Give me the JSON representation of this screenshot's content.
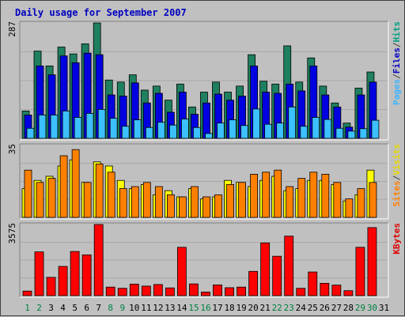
{
  "title": "Daily usage for September 2007",
  "legend": {
    "top": [
      {
        "label": "Pages",
        "color": "#3cb4ff"
      },
      {
        "label": "/",
        "color": "#404040"
      },
      {
        "label": "Files",
        "color": "#0000c0"
      },
      {
        "label": "/",
        "color": "#404040"
      },
      {
        "label": "Hits",
        "color": "#00a080"
      }
    ],
    "middle": [
      {
        "label": "Sites",
        "color": "#ff7f00"
      },
      {
        "label": "/",
        "color": "#404040"
      },
      {
        "label": "Visits",
        "color": "#e8d800"
      }
    ],
    "bottom": [
      {
        "label": "KBytes",
        "color": "#e00000"
      }
    ]
  },
  "colors": {
    "hits": "#1e8060",
    "files": "#0000e0",
    "pages": "#3cc0ff",
    "visits": "#ffff00",
    "sites": "#ff8000",
    "kbytes": "#ff0000",
    "weekday_label": "#000000",
    "weekend_label": "#008040"
  },
  "chart_data": [
    {
      "type": "bar",
      "panel": "top",
      "max_label": "287",
      "ylim": [
        0,
        287
      ],
      "categories": [
        "1",
        "2",
        "3",
        "4",
        "5",
        "6",
        "7",
        "8",
        "9",
        "10",
        "11",
        "12",
        "13",
        "14",
        "15",
        "16",
        "17",
        "18",
        "19",
        "20",
        "21",
        "22",
        "23",
        "24",
        "25",
        "26",
        "27",
        "28",
        "29",
        "30",
        "31"
      ],
      "series": [
        {
          "name": "Hits",
          "values": [
            68,
            217,
            180,
            227,
            210,
            235,
            287,
            145,
            140,
            158,
            120,
            130,
            95,
            135,
            78,
            115,
            140,
            115,
            130,
            208,
            142,
            135,
            230,
            140,
            200,
            130,
            88,
            38,
            125,
            165,
            0
          ]
        },
        {
          "name": "Files",
          "values": [
            58,
            180,
            158,
            205,
            188,
            212,
            208,
            108,
            105,
            138,
            88,
            112,
            65,
            115,
            60,
            88,
            110,
            95,
            105,
            180,
            115,
            112,
            135,
            118,
            180,
            108,
            78,
            28,
            108,
            140,
            0
          ]
        },
        {
          "name": "Pages",
          "values": [
            25,
            58,
            58,
            68,
            52,
            62,
            72,
            50,
            30,
            46,
            27,
            40,
            33,
            48,
            27,
            12,
            38,
            46,
            32,
            73,
            35,
            38,
            78,
            30,
            52,
            47,
            25,
            18,
            24,
            45,
            0
          ]
        }
      ]
    },
    {
      "type": "bar",
      "panel": "middle",
      "max_label": "35",
      "ylim": [
        0,
        35
      ],
      "categories": [
        "1",
        "2",
        "3",
        "4",
        "5",
        "6",
        "7",
        "8",
        "9",
        "10",
        "11",
        "12",
        "13",
        "14",
        "15",
        "16",
        "17",
        "18",
        "19",
        "20",
        "21",
        "22",
        "23",
        "24",
        "25",
        "26",
        "27",
        "28",
        "29",
        "30",
        "31"
      ],
      "series": [
        {
          "name": "Visits",
          "values": [
            14,
            18,
            20,
            25,
            28,
            17,
            27,
            25,
            18,
            14,
            16,
            11,
            13,
            10,
            14,
            9,
            10,
            18,
            17,
            15,
            18,
            20,
            13,
            14,
            18,
            18,
            16,
            8,
            11,
            23,
            0
          ]
        },
        {
          "name": "Sites",
          "values": [
            23,
            17,
            19,
            30,
            33,
            17,
            26,
            22,
            14,
            15,
            17,
            15,
            11,
            10,
            15,
            10,
            11,
            16,
            17,
            21,
            22,
            23,
            15,
            19,
            22,
            21,
            17,
            9,
            14,
            17,
            0
          ]
        }
      ]
    },
    {
      "type": "bar",
      "panel": "bottom",
      "max_label": "3575",
      "ylim": [
        0,
        3575
      ],
      "categories": [
        "1",
        "2",
        "3",
        "4",
        "5",
        "6",
        "7",
        "8",
        "9",
        "10",
        "11",
        "12",
        "13",
        "14",
        "15",
        "16",
        "17",
        "18",
        "19",
        "20",
        "21",
        "22",
        "23",
        "24",
        "25",
        "26",
        "27",
        "28",
        "29",
        "30",
        "31"
      ],
      "series": [
        {
          "name": "KBytes",
          "values": [
            230,
            2200,
            920,
            1470,
            2220,
            2050,
            3575,
            430,
            370,
            580,
            480,
            560,
            390,
            2430,
            590,
            180,
            540,
            400,
            430,
            1220,
            2650,
            1980,
            2990,
            370,
            1190,
            620,
            530,
            250,
            2430,
            3420,
            0
          ]
        }
      ]
    }
  ]
}
